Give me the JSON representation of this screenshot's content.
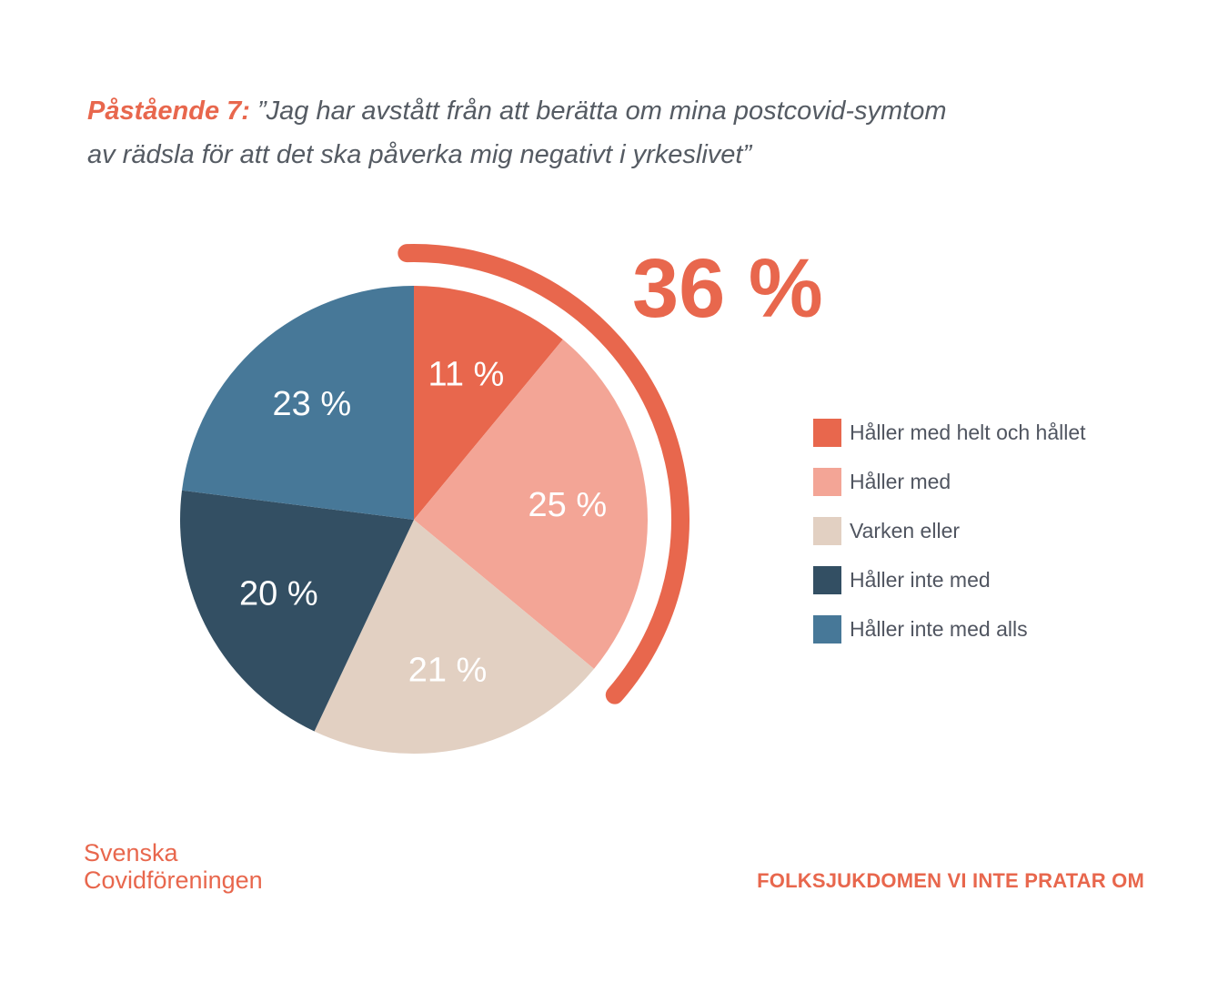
{
  "title": {
    "lead": "Påstående 7:",
    "text": "”Jag har avstått från att berätta om mina postcovid-symtom av rädsla för att det ska påverka mig negativt i yrkeslivet”"
  },
  "chart_data": {
    "type": "pie",
    "start_angle_deg": 0,
    "direction": "clockwise",
    "slices": [
      {
        "label": "Håller med helt och hållet",
        "value": 11,
        "display": "11 %",
        "color": "#e8674d"
      },
      {
        "label": "Håller med",
        "value": 25,
        "display": "25 %",
        "color": "#f3a596"
      },
      {
        "label": "Varken eller",
        "value": 21,
        "display": "21 %",
        "color": "#e2d0c2"
      },
      {
        "label": "Håller inte med",
        "value": 20,
        "display": "20 %",
        "color": "#334f63"
      },
      {
        "label": "Håller inte med alls",
        "value": 23,
        "display": "23 %",
        "color": "#477898"
      }
    ],
    "highlight": {
      "text": "36 %",
      "covers": [
        0,
        1
      ],
      "color": "#e8674d"
    },
    "legend_position": "right"
  },
  "footer": {
    "org_line1": "Svenska",
    "org_line2": "Covidföreningen",
    "tagline": "FOLKSJUKDOMEN VI INTE PRATAR OM"
  }
}
